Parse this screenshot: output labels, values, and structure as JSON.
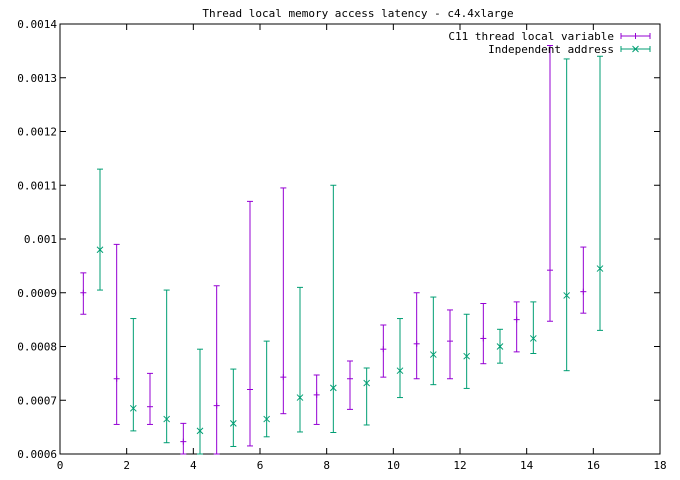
{
  "chart_data": {
    "type": "errorbar",
    "title": "Thread local memory access latency - c4.4xlarge",
    "xlabel": "",
    "ylabel": "",
    "xlim": [
      0,
      18
    ],
    "ylim": [
      0.0006,
      0.0014
    ],
    "x_ticks": [
      0,
      2,
      4,
      6,
      8,
      10,
      12,
      14,
      16,
      18
    ],
    "y_ticks": [
      0.0006,
      0.0007,
      0.0008,
      0.0009,
      0.001,
      0.0011,
      0.0012,
      0.0013,
      0.0014
    ],
    "x_tick_labels": [
      "0",
      "2",
      "4",
      "6",
      "8",
      "10",
      "12",
      "14",
      "16",
      "18"
    ],
    "y_tick_labels": [
      "0.0006",
      "0.0007",
      "0.0008",
      "0.0009",
      "0.001",
      "0.0011",
      "0.0012",
      "0.0013",
      "0.0014"
    ],
    "grid": false,
    "legend_position": "top-right",
    "series": [
      {
        "name": "C11 thread local variable",
        "color": "#9400d3",
        "marker": "plus",
        "points": [
          {
            "x": 0.7,
            "y": 0.0009,
            "low": 0.00086,
            "high": 0.000937
          },
          {
            "x": 1.7,
            "y": 0.00074,
            "low": 0.000655,
            "high": 0.00099
          },
          {
            "x": 2.7,
            "y": 0.000688,
            "low": 0.000655,
            "high": 0.00075
          },
          {
            "x": 3.7,
            "y": 0.000623,
            "low": 0.0006,
            "high": 0.000657
          },
          {
            "x": 4.7,
            "y": 0.00069,
            "low": 0.0006,
            "high": 0.000913
          },
          {
            "x": 5.7,
            "y": 0.00072,
            "low": 0.000615,
            "high": 0.00107
          },
          {
            "x": 6.7,
            "y": 0.000743,
            "low": 0.000675,
            "high": 0.001095
          },
          {
            "x": 7.7,
            "y": 0.00071,
            "low": 0.000655,
            "high": 0.000747
          },
          {
            "x": 8.7,
            "y": 0.00074,
            "low": 0.000683,
            "high": 0.000773
          },
          {
            "x": 9.7,
            "y": 0.000795,
            "low": 0.000743,
            "high": 0.00084
          },
          {
            "x": 10.7,
            "y": 0.000805,
            "low": 0.00074,
            "high": 0.0009
          },
          {
            "x": 11.7,
            "y": 0.00081,
            "low": 0.00074,
            "high": 0.000868
          },
          {
            "x": 12.7,
            "y": 0.000815,
            "low": 0.000768,
            "high": 0.00088
          },
          {
            "x": 13.7,
            "y": 0.00085,
            "low": 0.00079,
            "high": 0.000883
          },
          {
            "x": 14.7,
            "y": 0.000942,
            "low": 0.000847,
            "high": 0.00136
          },
          {
            "x": 15.7,
            "y": 0.000902,
            "low": 0.000862,
            "high": 0.000985
          }
        ]
      },
      {
        "name": "Independent address",
        "color": "#009e73",
        "marker": "cross",
        "points": [
          {
            "x": 1.2,
            "y": 0.00098,
            "low": 0.000905,
            "high": 0.00113
          },
          {
            "x": 2.2,
            "y": 0.000685,
            "low": 0.000643,
            "high": 0.000852
          },
          {
            "x": 3.2,
            "y": 0.000665,
            "low": 0.000621,
            "high": 0.000905
          },
          {
            "x": 4.2,
            "y": 0.000643,
            "low": 0.0006,
            "high": 0.000795
          },
          {
            "x": 5.2,
            "y": 0.000657,
            "low": 0.000614,
            "high": 0.000758
          },
          {
            "x": 6.2,
            "y": 0.000665,
            "low": 0.000632,
            "high": 0.00081
          },
          {
            "x": 7.2,
            "y": 0.000705,
            "low": 0.000641,
            "high": 0.00091
          },
          {
            "x": 8.2,
            "y": 0.000723,
            "low": 0.00064,
            "high": 0.0011
          },
          {
            "x": 9.2,
            "y": 0.000732,
            "low": 0.000654,
            "high": 0.00076
          },
          {
            "x": 10.2,
            "y": 0.000755,
            "low": 0.000705,
            "high": 0.000852
          },
          {
            "x": 11.2,
            "y": 0.000785,
            "low": 0.000729,
            "high": 0.000892
          },
          {
            "x": 12.2,
            "y": 0.000782,
            "low": 0.000722,
            "high": 0.00086
          },
          {
            "x": 13.2,
            "y": 0.0008,
            "low": 0.000769,
            "high": 0.000832
          },
          {
            "x": 14.2,
            "y": 0.000815,
            "low": 0.000787,
            "high": 0.000883
          },
          {
            "x": 15.2,
            "y": 0.000895,
            "low": 0.000755,
            "high": 0.001335
          },
          {
            "x": 16.2,
            "y": 0.000945,
            "low": 0.00083,
            "high": 0.00134
          }
        ]
      }
    ]
  }
}
